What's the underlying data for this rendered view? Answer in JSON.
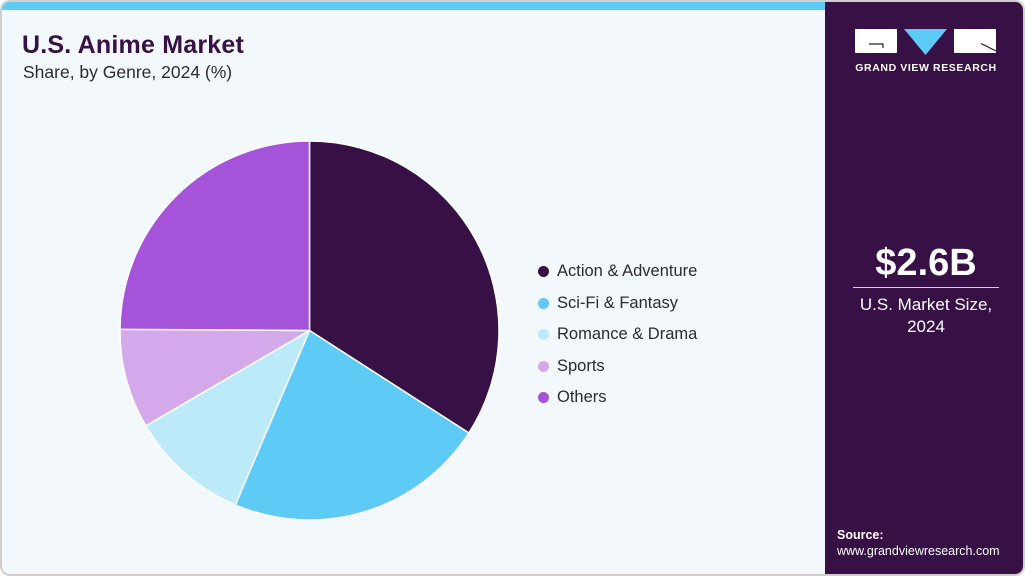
{
  "header": {
    "title": "U.S. Anime Market",
    "subtitle": "Share, by Genre, 2024 (%)"
  },
  "brand": {
    "name": "GRAND VIEW RESEARCH",
    "logo_icon": "gvr-logo-icon"
  },
  "side_panel": {
    "market_value": "$2.6B",
    "market_label_line1": "U.S. Market Size,",
    "market_label_line2": "2024",
    "source_title": "Source:",
    "source_url": "www.grandviewresearch.com"
  },
  "colors": {
    "accent_bar": "#5ecaf6",
    "panel": "#371046",
    "background": "#f3f8fc"
  },
  "legend": {
    "items": [
      {
        "label": "Action & Adventure",
        "color": "#371046"
      },
      {
        "label": "Sci-Fi & Fantasy",
        "color": "#5ecaf6"
      },
      {
        "label": "Romance & Drama",
        "color": "#bdeaf9"
      },
      {
        "label": "Sports",
        "color": "#d4a9ec"
      },
      {
        "label": "Others",
        "color": "#a553d8"
      }
    ]
  },
  "chart_data": {
    "type": "pie",
    "title": "U.S. Anime Market",
    "subtitle": "Share, by Genre, 2024 (%)",
    "categories": [
      "Action & Adventure",
      "Sci-Fi & Fantasy",
      "Romance & Drama",
      "Sports",
      "Others"
    ],
    "values": [
      34.1,
      22.3,
      10.2,
      8.5,
      24.9
    ],
    "colors": [
      "#371046",
      "#5ecaf6",
      "#bdeaf9",
      "#d4a9ec",
      "#a553d8"
    ],
    "start_angle_deg": 0,
    "direction": "clockwise",
    "legend_position": "right",
    "data_labels": false
  }
}
